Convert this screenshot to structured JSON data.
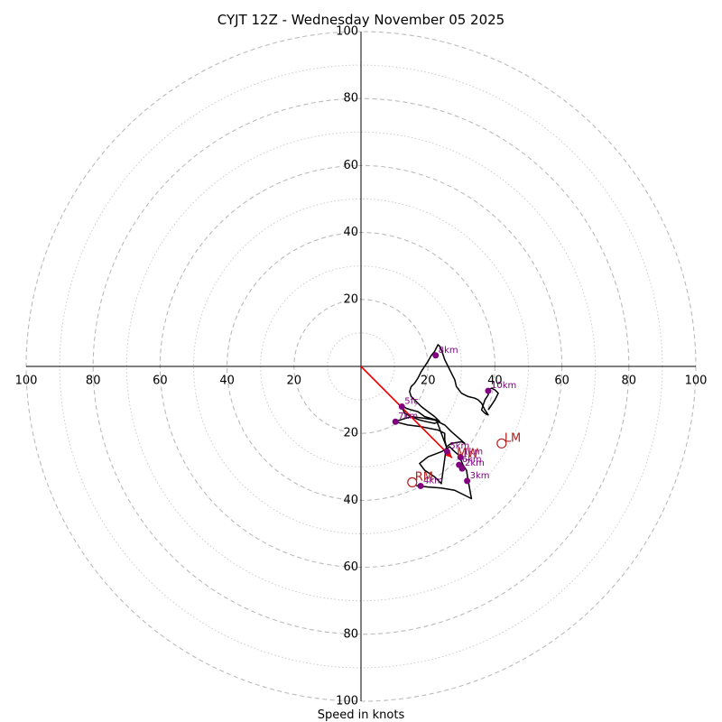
{
  "chart_data": {
    "type": "hodograph",
    "title": "CYJT 12Z - Wednesday November 05 2025",
    "xlabel": "Speed in knots",
    "xlim": [
      -100,
      100
    ],
    "ylim": [
      -100,
      100
    ],
    "major_rings": [
      20,
      40,
      60,
      80,
      100
    ],
    "minor_rings": [
      10,
      30,
      50,
      70,
      90
    ],
    "tick_values": [
      20,
      40,
      60,
      80,
      100
    ],
    "colors": {
      "grid": "#bbbbbb",
      "axis": "#000000",
      "trace": "#000000",
      "points": "#800080",
      "labels": "#800080",
      "motion": "#b22222",
      "shear_vector": "#ee0000"
    },
    "trace": [
      [
        16.5,
        -35.6
      ],
      [
        20,
        -36
      ],
      [
        24,
        -36.3
      ],
      [
        28,
        -37
      ],
      [
        33,
        -39.5
      ],
      [
        32,
        -34
      ],
      [
        31.5,
        -31
      ],
      [
        30.5,
        -29.5
      ],
      [
        29.2,
        -26.5
      ],
      [
        27.5,
        -25
      ],
      [
        26.5,
        -24
      ],
      [
        24,
        -25.5
      ],
      [
        20,
        -27
      ],
      [
        17.5,
        -29
      ],
      [
        19,
        -31
      ],
      [
        22,
        -33
      ],
      [
        24,
        -35
      ],
      [
        25.5,
        -24
      ],
      [
        27,
        -23
      ],
      [
        30,
        -22.5
      ],
      [
        31,
        -23
      ],
      [
        27,
        -19.5
      ],
      [
        25,
        -17.5
      ],
      [
        22,
        -16
      ],
      [
        19,
        -15.5
      ],
      [
        15,
        -15
      ],
      [
        10,
        -16.5
      ],
      [
        14,
        -17.5
      ],
      [
        18,
        -18
      ],
      [
        23,
        -19
      ],
      [
        25,
        -20
      ],
      [
        25,
        -22
      ],
      [
        25.5,
        -24
      ],
      [
        22.5,
        -16
      ],
      [
        19,
        -15
      ],
      [
        17,
        -13.5
      ],
      [
        15,
        -13
      ],
      [
        13.5,
        -12.5
      ],
      [
        12,
        -11.5
      ],
      [
        13,
        -14
      ],
      [
        15,
        -15
      ],
      [
        17.5,
        -16
      ],
      [
        19.5,
        -16.5
      ],
      [
        22,
        -17
      ],
      [
        23.5,
        -16.5
      ],
      [
        22,
        -15
      ],
      [
        20,
        -13.5
      ],
      [
        18,
        -12
      ],
      [
        16,
        -10
      ],
      [
        15,
        -9
      ],
      [
        14.5,
        -7.5
      ],
      [
        15,
        -6
      ],
      [
        16,
        -5
      ],
      [
        17,
        -3.5
      ],
      [
        18,
        -1.5
      ],
      [
        19,
        0
      ],
      [
        20,
        1.5
      ],
      [
        21,
        3.3
      ],
      [
        22,
        4.5
      ],
      [
        23,
        6.5
      ],
      [
        23.5,
        6
      ],
      [
        24,
        5
      ],
      [
        24.5,
        3.5
      ],
      [
        25,
        2
      ],
      [
        26,
        0
      ],
      [
        27,
        -2
      ],
      [
        28,
        -4
      ],
      [
        28.5,
        -6
      ],
      [
        30,
        -8
      ],
      [
        32,
        -9
      ],
      [
        34,
        -9.5
      ],
      [
        35,
        -10
      ],
      [
        36,
        -11
      ],
      [
        37,
        -13
      ],
      [
        38,
        -14.5
      ],
      [
        37,
        -14
      ],
      [
        36,
        -13
      ],
      [
        36.5,
        -11.5
      ],
      [
        37,
        -10
      ],
      [
        38,
        -8.5
      ],
      [
        38,
        -7
      ],
      [
        39,
        -6.5
      ],
      [
        40,
        -7
      ],
      [
        41,
        -8
      ],
      [
        40,
        -10
      ],
      [
        38,
        -13
      ]
    ],
    "points": [
      {
        "label": "1km",
        "u": 29.7,
        "v": -27.1
      },
      {
        "label": "2km",
        "u": 30.2,
        "v": -30.5
      },
      {
        "label": "3km",
        "u": 31.7,
        "v": -34.2
      },
      {
        "label": "4km",
        "u": 17.8,
        "v": -35.7
      },
      {
        "label": "5km",
        "u": 25.7,
        "v": -25.4
      },
      {
        "label": "6km",
        "u": 29.3,
        "v": -29.4
      },
      {
        "label": "7km",
        "u": 10.3,
        "v": -16.5
      },
      {
        "label": "5fc",
        "u": 12.2,
        "v": -12.0
      },
      {
        "label": "8km",
        "u": 22.3,
        "v": 3.3
      },
      {
        "label": "10km",
        "u": 38.0,
        "v": -7.3
      }
    ],
    "storm_motion": [
      {
        "label": "LM",
        "u": 42.0,
        "v": -23.0
      },
      {
        "label": "RM",
        "u": 15.3,
        "v": -34.6
      },
      {
        "label": "MW",
        "u": 27.8,
        "v": -27.6
      }
    ],
    "shear_vector": {
      "u": 27.2,
      "v": -27.3
    }
  }
}
